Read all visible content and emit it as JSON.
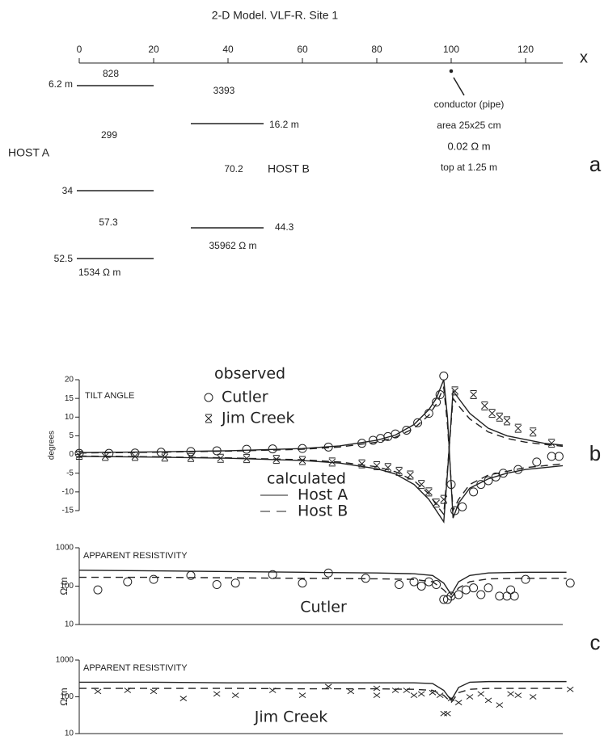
{
  "model": {
    "title": "2-D Model. VLF-R. Site 1",
    "x_label": "x",
    "xlim": [
      0,
      130
    ],
    "xticks": [
      0,
      20,
      40,
      60,
      80,
      100,
      120
    ],
    "panel": "a",
    "labels": [
      "828",
      "6.2 m",
      "3393",
      "16.2 m",
      "299",
      "HOST A",
      "70.2",
      "HOST B",
      "34",
      "57.3",
      "44.3",
      "35962 Ω m",
      "52.5",
      "1534 Ω m",
      "conductor (pipe)",
      "area 25x25 cm",
      "0.02 Ω m",
      "top at 1.25 m"
    ]
  },
  "chart_data": [
    {
      "type": "scatter",
      "title": "TILT ANGLE",
      "y_label": "degrees",
      "panel": "b",
      "xlim": [
        0,
        130
      ],
      "ylim": [
        -15,
        20
      ],
      "yticks": [
        -15,
        -10,
        -5,
        0,
        5,
        10,
        15,
        20
      ],
      "log": false,
      "legend_titles": {
        "observed": "observed",
        "calculated": "calculated"
      },
      "series": [
        {
          "name": "Cutler",
          "color": "#222222",
          "marker": "circle",
          "x": [
            0,
            8,
            15,
            22,
            30,
            37,
            45,
            52,
            60,
            67,
            76,
            79,
            81,
            83,
            85,
            88,
            91,
            94,
            96,
            97,
            98,
            100,
            101,
            103,
            106,
            108,
            110,
            112,
            114,
            118,
            123,
            127,
            129
          ],
          "values": [
            0.3,
            0.3,
            0.4,
            0.6,
            0.8,
            1,
            1.4,
            1.5,
            1.6,
            2,
            3,
            3.8,
            4.3,
            4.8,
            5.5,
            6.5,
            8.5,
            11,
            14,
            16,
            21,
            -8,
            -15,
            -14,
            -10,
            -8,
            -7,
            -6,
            -5,
            -4,
            -2,
            -0.5,
            -0.5
          ]
        },
        {
          "name": "Jim Creek",
          "color": "#222222",
          "marker": "asterisk",
          "x": [
            0,
            7,
            15,
            23,
            30,
            38,
            45,
            53,
            60,
            68,
            76,
            80,
            83,
            86,
            89,
            92,
            94,
            96,
            98,
            101,
            106,
            109,
            111,
            113,
            115,
            118,
            122,
            127
          ],
          "values": [
            -0.2,
            -0.5,
            -0.5,
            -0.7,
            -0.8,
            -1,
            -1.1,
            -1.3,
            -1.6,
            -2,
            -2.5,
            -3,
            -3.5,
            -4.5,
            -5.5,
            -8,
            -10,
            -13,
            -12,
            17,
            16,
            13,
            11,
            10,
            9,
            7,
            6,
            3
          ]
        },
        {
          "name": "Host A",
          "color": "#222222",
          "dash": "solid",
          "x": [
            0,
            20,
            40,
            60,
            70,
            80,
            85,
            90,
            94,
            96,
            98,
            99,
            100.5,
            102,
            105,
            110,
            115,
            120,
            125,
            130
          ],
          "branches": [
            [
              0.5,
              0.7,
              1,
              1.6,
              2.3,
              3.8,
              5.2,
              8,
              12,
              15,
              20,
              10,
              -17,
              -13,
              -9,
              -6.5,
              -5,
              -4,
              -3.5,
              -3
            ],
            [
              -0.5,
              -0.7,
              -1,
              -1.6,
              -2.3,
              -3.8,
              -5.2,
              -8,
              -12,
              -15,
              -18,
              -5,
              17,
              15,
              11,
              7,
              5,
              4,
              3,
              2.5
            ]
          ]
        },
        {
          "name": "Host B",
          "color": "#222222",
          "dash": "dashed",
          "x": [
            0,
            20,
            40,
            60,
            70,
            80,
            85,
            90,
            94,
            96,
            98,
            99,
            100.5,
            102,
            105,
            110,
            115,
            120,
            125,
            130
          ],
          "branches": [
            [
              0.4,
              0.6,
              0.9,
              1.4,
              2,
              3.3,
              4.6,
              7,
              10.5,
              13.5,
              18,
              8,
              -15,
              -12,
              -8,
              -5.5,
              -4.5,
              -3.5,
              -3,
              -2.5
            ],
            [
              -0.4,
              -0.6,
              -0.9,
              -1.4,
              -2,
              -3.3,
              -4.6,
              -7,
              -10.5,
              -13.5,
              -16,
              -4,
              15,
              13,
              9.5,
              6,
              4.3,
              3.3,
              2.7,
              2.2
            ]
          ]
        }
      ]
    },
    {
      "type": "scatter",
      "title": "APPARENT RESISTIVITY",
      "y_label": "Ω m",
      "label": "Cutler",
      "panel": "c",
      "xlim": [
        0,
        130
      ],
      "ylim": [
        10,
        1000
      ],
      "yticks": [
        10,
        100,
        1000
      ],
      "log": true,
      "series": [
        {
          "color": "#222222",
          "marker": "circle",
          "x": [
            5,
            13,
            20,
            30,
            37,
            42,
            52,
            60,
            67,
            77,
            86,
            90,
            92,
            94,
            96,
            98,
            99,
            100,
            102,
            104,
            106,
            108,
            110,
            113,
            115,
            116,
            117,
            120,
            132
          ],
          "values": [
            80,
            130,
            150,
            190,
            110,
            120,
            200,
            120,
            220,
            160,
            110,
            130,
            100,
            130,
            110,
            45,
            45,
            55,
            60,
            80,
            90,
            60,
            90,
            55,
            55,
            80,
            55,
            150,
            120
          ]
        },
        {
          "color": "#222222",
          "dash": "solid",
          "x": [
            0,
            20,
            40,
            60,
            80,
            90,
            95,
            98,
            100,
            102,
            105,
            110,
            120,
            131
          ],
          "values": [
            260,
            250,
            240,
            230,
            220,
            210,
            190,
            120,
            60,
            130,
            190,
            220,
            230,
            230
          ]
        },
        {
          "color": "#222222",
          "dash": "dashed",
          "x": [
            0,
            20,
            40,
            60,
            80,
            90,
            95,
            98,
            100,
            102,
            105,
            110,
            120,
            131
          ],
          "values": [
            170,
            170,
            165,
            160,
            155,
            150,
            130,
            80,
            50,
            90,
            130,
            155,
            160,
            160
          ]
        }
      ]
    },
    {
      "type": "scatter",
      "title": "APPARENT RESISTIVITY",
      "y_label": "Ω m",
      "label": "Jim Creek",
      "xlim": [
        0,
        130
      ],
      "ylim": [
        10,
        1000
      ],
      "yticks": [
        10,
        100,
        1000
      ],
      "log": true,
      "series": [
        {
          "color": "#222222",
          "marker": "cross",
          "x": [
            5,
            13,
            20,
            28,
            37,
            42,
            52,
            60,
            67,
            73,
            80,
            80,
            85,
            88,
            90,
            92,
            95,
            97,
            98,
            99,
            100,
            102,
            105,
            108,
            110,
            113,
            116,
            118,
            122,
            132
          ],
          "values": [
            140,
            150,
            140,
            90,
            120,
            110,
            150,
            110,
            190,
            140,
            170,
            110,
            150,
            150,
            110,
            120,
            130,
            110,
            35,
            35,
            90,
            70,
            100,
            120,
            80,
            60,
            120,
            110,
            100,
            160
          ]
        },
        {
          "color": "#222222",
          "dash": "solid",
          "x": [
            0,
            20,
            40,
            60,
            80,
            90,
            95,
            98,
            100,
            102,
            105,
            110,
            120,
            131
          ],
          "values": [
            250,
            250,
            240,
            240,
            240,
            240,
            230,
            150,
            80,
            180,
            250,
            260,
            260,
            260
          ]
        },
        {
          "color": "#222222",
          "dash": "dashed",
          "x": [
            0,
            20,
            40,
            60,
            80,
            90,
            95,
            98,
            100,
            102,
            105,
            110,
            120,
            131
          ],
          "values": [
            170,
            170,
            170,
            165,
            165,
            160,
            150,
            110,
            70,
            130,
            160,
            170,
            170,
            170
          ]
        }
      ]
    }
  ]
}
